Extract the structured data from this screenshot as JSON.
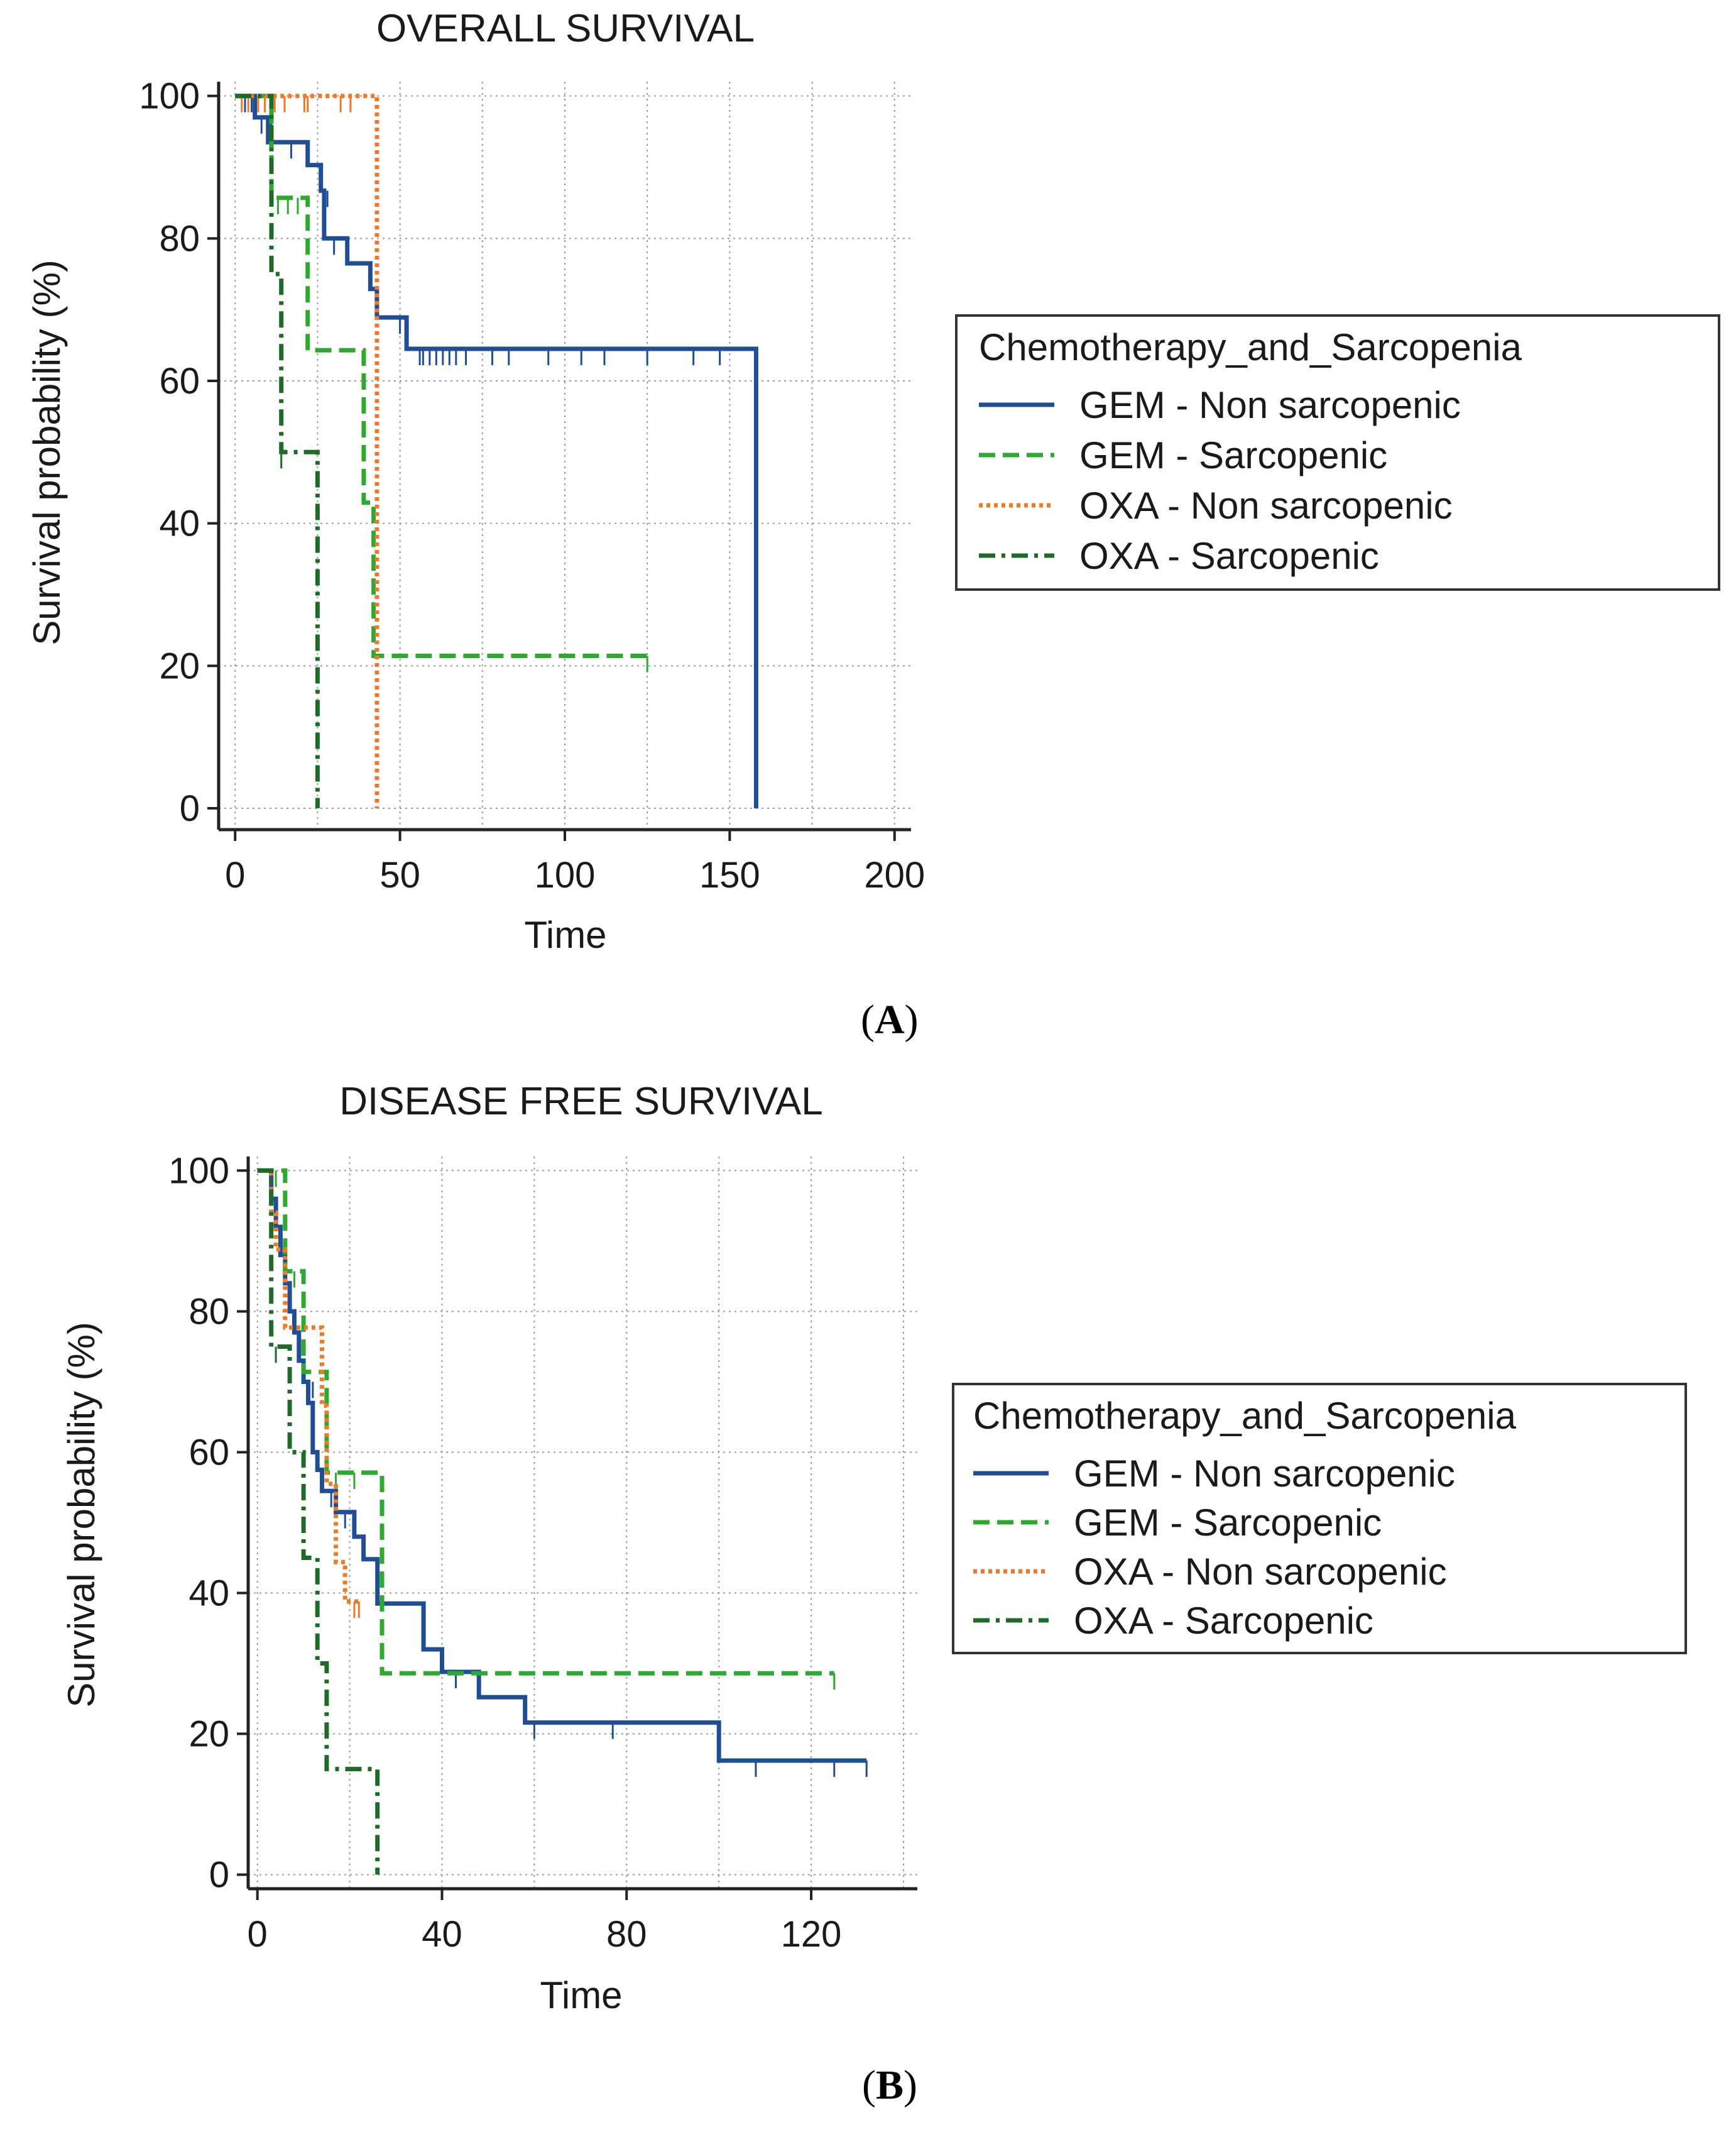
{
  "chart_data": [
    {
      "type": "line",
      "subtype": "kaplan-meier",
      "panel_label": "A",
      "title": "OVERALL SURVIVAL",
      "xlabel": "Time",
      "ylabel": "Survival probability (%)",
      "xlim": [
        -5,
        205
      ],
      "ylim": [
        -3,
        102
      ],
      "xticks": [
        0,
        50,
        100,
        150,
        200
      ],
      "yticks": [
        0,
        20,
        40,
        60,
        80,
        100
      ],
      "xgrid": [
        0,
        25,
        50,
        75,
        100,
        125,
        150,
        175,
        200
      ],
      "ygrid": [
        0,
        20,
        40,
        60,
        80,
        100
      ],
      "grid": true,
      "legend": {
        "title": "Chemotherapy_and_Sarcopenia",
        "position": "right",
        "entries": [
          "GEM - Non sarcopenic",
          "GEM - Sarcopenic",
          "OXA - Non sarcopenic",
          "OXA - Sarcopenic"
        ]
      },
      "series": [
        {
          "name": "GEM - Non sarcopenic",
          "color": "#1f4e96",
          "style": "solid",
          "steps": [
            [
              0,
              100
            ],
            [
              6,
              100
            ],
            [
              6,
              97
            ],
            [
              10,
              97
            ],
            [
              10,
              93.5
            ],
            [
              22,
              93.5
            ],
            [
              22,
              90.3
            ],
            [
              26,
              90.3
            ],
            [
              26,
              86.7
            ],
            [
              27,
              86.7
            ],
            [
              27,
              80
            ],
            [
              34,
              80
            ],
            [
              34,
              76.5
            ],
            [
              41,
              76.5
            ],
            [
              41,
              72.9
            ],
            [
              43,
              72.9
            ],
            [
              43,
              68.9
            ],
            [
              52,
              68.9
            ],
            [
              52,
              64.5
            ],
            [
              158,
              64.5
            ],
            [
              158,
              0
            ]
          ],
          "censored": [
            [
              3,
              100
            ],
            [
              5,
              100
            ],
            [
              8,
              97
            ],
            [
              11,
              97
            ],
            [
              17,
              93.5
            ],
            [
              22,
              93.5
            ],
            [
              28,
              86.7
            ],
            [
              30,
              80
            ],
            [
              43,
              72.9
            ],
            [
              50,
              68.9
            ],
            [
              52,
              68.9
            ],
            [
              56,
              64.5
            ],
            [
              57,
              64.5
            ],
            [
              59,
              64.5
            ],
            [
              61,
              64.5
            ],
            [
              63,
              64.5
            ],
            [
              65,
              64.5
            ],
            [
              67,
              64.5
            ],
            [
              70,
              64.5
            ],
            [
              78,
              64.5
            ],
            [
              83,
              64.5
            ],
            [
              95,
              64.5
            ],
            [
              105,
              64.5
            ],
            [
              112,
              64.5
            ],
            [
              125,
              64.5
            ],
            [
              139,
              64.5
            ],
            [
              147,
              64.5
            ]
          ]
        },
        {
          "name": "GEM - Sarcopenic",
          "color": "#2ea82e",
          "style": "dashed",
          "steps": [
            [
              0,
              100
            ],
            [
              11,
              100
            ],
            [
              11,
              85.7
            ],
            [
              22,
              85.7
            ],
            [
              22,
              64.3
            ],
            [
              39,
              64.3
            ],
            [
              39,
              42.9
            ],
            [
              42,
              42.9
            ],
            [
              42,
              21.4
            ],
            [
              125,
              21.4
            ]
          ],
          "censored": [
            [
              13,
              85.7
            ],
            [
              16,
              85.7
            ],
            [
              19,
              85.7
            ],
            [
              125,
              21.4
            ]
          ]
        },
        {
          "name": "OXA - Non sarcopenic",
          "color": "#ee7a28",
          "style": "dotted",
          "steps": [
            [
              0,
              100
            ],
            [
              43,
              100
            ],
            [
              43,
              0
            ]
          ],
          "censored": [
            [
              2,
              100
            ],
            [
              4,
              100
            ],
            [
              7,
              100
            ],
            [
              9,
              100
            ],
            [
              12,
              100
            ],
            [
              15,
              100
            ],
            [
              21,
              100
            ],
            [
              22,
              100
            ],
            [
              32,
              100
            ],
            [
              35,
              100
            ]
          ]
        },
        {
          "name": "OXA - Sarcopenic",
          "color": "#1e6b28",
          "style": "dashdot",
          "steps": [
            [
              0,
              100
            ],
            [
              11,
              100
            ],
            [
              11,
              75
            ],
            [
              14,
              75
            ],
            [
              14,
              50
            ],
            [
              25,
              50
            ],
            [
              25,
              0
            ]
          ],
          "censored": [
            [
              14,
              50
            ]
          ]
        }
      ]
    },
    {
      "type": "line",
      "subtype": "kaplan-meier",
      "panel_label": "B",
      "title": "DISEASE FREE SURVIVAL",
      "xlabel": "Time",
      "ylabel": "Survival probability (%)",
      "xlim": [
        -2,
        143
      ],
      "ylim": [
        -2,
        102
      ],
      "xticks": [
        0,
        40,
        80,
        120
      ],
      "yticks": [
        0,
        20,
        40,
        60,
        80,
        100
      ],
      "xgrid": [
        0,
        20,
        40,
        60,
        80,
        100,
        120,
        140
      ],
      "ygrid": [
        0,
        20,
        40,
        60,
        80,
        100
      ],
      "grid": true,
      "legend": {
        "title": "Chemotherapy_and_Sarcopenia",
        "position": "right",
        "entries": [
          "GEM - Non sarcopenic",
          "GEM - Sarcopenic",
          "OXA - Non sarcopenic",
          "OXA - Sarcopenic"
        ]
      },
      "series": [
        {
          "name": "GEM - Non sarcopenic",
          "color": "#1f4e96",
          "style": "solid",
          "steps": [
            [
              0,
              100
            ],
            [
              3,
              100
            ],
            [
              3,
              96
            ],
            [
              4,
              96
            ],
            [
              4,
              92
            ],
            [
              5,
              92
            ],
            [
              5,
              88
            ],
            [
              6,
              88
            ],
            [
              6,
              84
            ],
            [
              7,
              84
            ],
            [
              7,
              80
            ],
            [
              8,
              80
            ],
            [
              8,
              77
            ],
            [
              9,
              77
            ],
            [
              9,
              73
            ],
            [
              10,
              73
            ],
            [
              10,
              70
            ],
            [
              11,
              70
            ],
            [
              11,
              67
            ],
            [
              12,
              67
            ],
            [
              12,
              60
            ],
            [
              13,
              60
            ],
            [
              13,
              57.5
            ],
            [
              14,
              57.5
            ],
            [
              14,
              54.5
            ],
            [
              17,
              54.5
            ],
            [
              17,
              51.5
            ],
            [
              21,
              51.5
            ],
            [
              21,
              48
            ],
            [
              23,
              48
            ],
            [
              23,
              44.8
            ],
            [
              26,
              44.8
            ],
            [
              26,
              38.5
            ],
            [
              36,
              38.5
            ],
            [
              36,
              32
            ],
            [
              40,
              32
            ],
            [
              40,
              28.8
            ],
            [
              48,
              28.8
            ],
            [
              48,
              25.2
            ],
            [
              58,
              25.2
            ],
            [
              58,
              21.6
            ],
            [
              100,
              21.6
            ],
            [
              100,
              16.2
            ],
            [
              132,
              16.2
            ]
          ],
          "censored": [
            [
              5,
              92
            ],
            [
              9,
              77
            ],
            [
              12,
              70
            ],
            [
              16,
              54.5
            ],
            [
              19,
              51.5
            ],
            [
              43,
              28.8
            ],
            [
              60,
              21.6
            ],
            [
              77,
              21.6
            ],
            [
              108,
              16.2
            ],
            [
              125,
              16.2
            ],
            [
              132,
              16.2
            ]
          ]
        },
        {
          "name": "GEM - Sarcopenic",
          "color": "#2ea82e",
          "style": "dashed",
          "steps": [
            [
              0,
              100
            ],
            [
              6,
              100
            ],
            [
              6,
              85.7
            ],
            [
              10,
              85.7
            ],
            [
              10,
              71.4
            ],
            [
              15,
              71.4
            ],
            [
              15,
              57.1
            ],
            [
              27,
              57.1
            ],
            [
              27,
              28.6
            ],
            [
              125,
              28.6
            ]
          ],
          "censored": [
            [
              4,
              100
            ],
            [
              8,
              85.7
            ],
            [
              17,
              57.1
            ],
            [
              21,
              57.1
            ],
            [
              125,
              28.6
            ]
          ]
        },
        {
          "name": "OXA - Non sarcopenic",
          "color": "#ee7a28",
          "style": "dotted",
          "steps": [
            [
              0,
              100
            ],
            [
              3,
              100
            ],
            [
              3,
              94
            ],
            [
              4,
              94
            ],
            [
              4,
              88.8
            ],
            [
              6,
              88.8
            ],
            [
              6,
              77.7
            ],
            [
              14,
              77.7
            ],
            [
              14,
              66.6
            ],
            [
              15,
              66.6
            ],
            [
              15,
              55.5
            ],
            [
              17,
              55.5
            ],
            [
              17,
              44.4
            ],
            [
              19,
              44.4
            ],
            [
              19,
              38.8
            ],
            [
              22,
              38.8
            ]
          ],
          "censored": [
            [
              21,
              38.8
            ],
            [
              22,
              38.8
            ]
          ]
        },
        {
          "name": "OXA - Sarcopenic",
          "color": "#1e6b28",
          "style": "dashdot",
          "steps": [
            [
              0,
              100
            ],
            [
              3,
              100
            ],
            [
              3,
              75
            ],
            [
              7,
              75
            ],
            [
              7,
              60
            ],
            [
              10,
              60
            ],
            [
              10,
              45
            ],
            [
              13,
              45
            ],
            [
              13,
              30
            ],
            [
              15,
              30
            ],
            [
              15,
              15
            ],
            [
              26,
              15
            ],
            [
              26,
              0
            ]
          ],
          "censored": [
            [
              4,
              75
            ]
          ]
        }
      ]
    }
  ]
}
